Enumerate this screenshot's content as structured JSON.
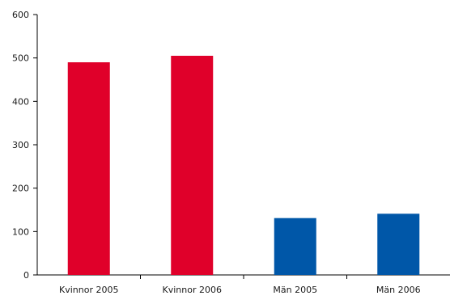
{
  "chart_data": {
    "type": "bar",
    "title": "",
    "xlabel": "",
    "ylabel": "",
    "categories": [
      "Kvinnor 2005",
      "Kvinnor 2006",
      "Män 2005",
      "Män 2006"
    ],
    "values": [
      490,
      505,
      131,
      141
    ],
    "bar_colors": [
      "#e0002a",
      "#e0002a",
      "#0057a8",
      "#0057a8"
    ],
    "ylim": [
      0,
      600
    ],
    "yticks": [
      "0",
      "100",
      "200",
      "300",
      "400",
      "500",
      "600"
    ],
    "grid": false,
    "legend": "none"
  }
}
